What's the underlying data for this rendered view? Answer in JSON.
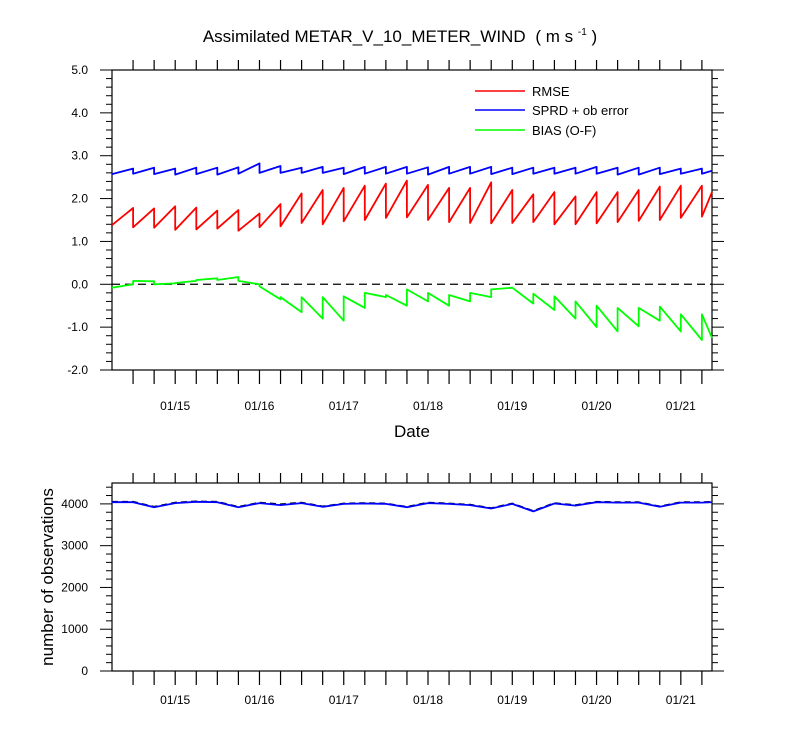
{
  "chart_data": [
    {
      "type": "line",
      "title": "Assimilated METAR_V_10_METER_WIND",
      "title_unit_base": "( m s",
      "title_unit_exp": "-1",
      "title_unit_close": " )",
      "xlabel": "Date",
      "ylabel": "",
      "ylim": [
        -2.0,
        5.0
      ],
      "y_ticks": [
        "5.0",
        "4.0",
        "3.0",
        "2.0",
        "1.0",
        "0.0",
        "-1.0",
        "-2.0"
      ],
      "x_ticks": [
        "01/15",
        "01/16",
        "01/17",
        "01/18",
        "01/19",
        "01/20",
        "01/21"
      ],
      "xlim_days": [
        14.0,
        21.12
      ],
      "legend_placement": "top-right",
      "zero_line": "dashed",
      "series": [
        {
          "name": "RMSE",
          "color": "#ff0000",
          "x": [
            14.0,
            14.25,
            14.25,
            14.5,
            14.5,
            14.75,
            14.75,
            15.0,
            15.0,
            15.25,
            15.25,
            15.5,
            15.5,
            15.75,
            15.75,
            16.0,
            16.0,
            16.25,
            16.25,
            16.5,
            16.5,
            16.75,
            16.75,
            17.0,
            17.0,
            17.25,
            17.25,
            17.5,
            17.5,
            17.75,
            17.75,
            18.0,
            18.0,
            18.25,
            18.25,
            18.5,
            18.5,
            18.75,
            18.75,
            19.0,
            19.0,
            19.25,
            19.25,
            19.5,
            19.5,
            19.75,
            19.75,
            20.0,
            20.0,
            20.25,
            20.25,
            20.5,
            20.5,
            20.75,
            20.75,
            21.0,
            21.0,
            21.12
          ],
          "y": [
            1.38,
            1.78,
            1.33,
            1.77,
            1.32,
            1.82,
            1.27,
            1.79,
            1.28,
            1.72,
            1.3,
            1.73,
            1.25,
            1.65,
            1.33,
            1.87,
            1.35,
            2.12,
            1.43,
            2.2,
            1.4,
            2.25,
            1.47,
            2.3,
            1.5,
            2.35,
            1.55,
            2.42,
            1.56,
            2.32,
            1.5,
            2.25,
            1.45,
            2.25,
            1.43,
            2.38,
            1.42,
            2.2,
            1.43,
            2.1,
            1.45,
            2.15,
            1.4,
            2.05,
            1.4,
            2.15,
            1.42,
            2.15,
            1.45,
            2.2,
            1.48,
            2.28,
            1.5,
            2.3,
            1.55,
            2.3,
            1.58,
            2.15
          ]
        },
        {
          "name": "SPRD + ob error",
          "color": "#0000ff",
          "x": [
            14.0,
            14.25,
            14.25,
            14.5,
            14.5,
            14.75,
            14.75,
            15.0,
            15.0,
            15.25,
            15.25,
            15.5,
            15.5,
            15.75,
            15.75,
            16.0,
            16.0,
            16.25,
            16.25,
            16.5,
            16.5,
            16.75,
            16.75,
            17.0,
            17.0,
            17.25,
            17.25,
            17.5,
            17.5,
            17.75,
            17.75,
            18.0,
            18.0,
            18.25,
            18.25,
            18.5,
            18.5,
            18.75,
            18.75,
            19.0,
            19.0,
            19.25,
            19.25,
            19.5,
            19.5,
            19.75,
            19.75,
            20.0,
            20.0,
            20.25,
            20.25,
            20.5,
            20.5,
            20.75,
            20.75,
            21.0,
            21.0,
            21.12
          ],
          "y": [
            2.57,
            2.7,
            2.58,
            2.72,
            2.57,
            2.7,
            2.56,
            2.72,
            2.57,
            2.72,
            2.56,
            2.73,
            2.58,
            2.82,
            2.6,
            2.76,
            2.6,
            2.72,
            2.6,
            2.74,
            2.6,
            2.72,
            2.57,
            2.74,
            2.58,
            2.74,
            2.58,
            2.74,
            2.58,
            2.73,
            2.56,
            2.74,
            2.58,
            2.74,
            2.58,
            2.74,
            2.57,
            2.72,
            2.57,
            2.72,
            2.58,
            2.72,
            2.58,
            2.72,
            2.58,
            2.74,
            2.58,
            2.72,
            2.56,
            2.72,
            2.56,
            2.72,
            2.57,
            2.7,
            2.58,
            2.7,
            2.58,
            2.65
          ]
        },
        {
          "name": "BIAS (O-F)",
          "color": "#00ff00",
          "x": [
            14.0,
            14.25,
            14.25,
            14.5,
            14.5,
            14.75,
            14.75,
            15.0,
            15.0,
            15.25,
            15.25,
            15.5,
            15.5,
            15.75,
            15.75,
            16.0,
            16.0,
            16.25,
            16.25,
            16.5,
            16.5,
            16.75,
            16.75,
            17.0,
            17.0,
            17.25,
            17.25,
            17.5,
            17.5,
            17.75,
            17.75,
            18.0,
            18.0,
            18.25,
            18.25,
            18.5,
            18.5,
            18.75,
            18.75,
            19.0,
            19.0,
            19.25,
            19.25,
            19.5,
            19.5,
            19.75,
            19.75,
            20.0,
            20.0,
            20.25,
            20.25,
            20.5,
            20.5,
            20.75,
            20.75,
            21.0,
            21.0,
            21.12
          ],
          "y": [
            -0.08,
            0.0,
            0.08,
            0.07,
            0.0,
            0.02,
            0.03,
            0.08,
            0.1,
            0.14,
            0.1,
            0.17,
            0.08,
            0.0,
            -0.05,
            -0.35,
            -0.3,
            -0.65,
            -0.3,
            -0.8,
            -0.3,
            -0.85,
            -0.28,
            -0.55,
            -0.2,
            -0.3,
            -0.25,
            -0.5,
            -0.12,
            -0.4,
            -0.2,
            -0.5,
            -0.25,
            -0.4,
            -0.2,
            -0.3,
            -0.12,
            -0.08,
            -0.08,
            -0.45,
            -0.22,
            -0.6,
            -0.28,
            -0.8,
            -0.4,
            -1.0,
            -0.5,
            -1.1,
            -0.55,
            -0.98,
            -0.55,
            -0.85,
            -0.52,
            -1.1,
            -0.7,
            -1.3,
            -0.7,
            -1.25
          ]
        }
      ]
    },
    {
      "type": "line",
      "title": "",
      "xlabel": "",
      "ylabel": "number of observations",
      "ylim": [
        0,
        4500
      ],
      "y_ticks": [
        "4000",
        "3000",
        "2000",
        "1000",
        "0"
      ],
      "x_ticks": [
        "01/15",
        "01/16",
        "01/17",
        "01/18",
        "01/19",
        "01/20",
        "01/21"
      ],
      "xlim_days": [
        14.0,
        21.12
      ],
      "series": [
        {
          "name": "",
          "color": "#000000",
          "dash": "dashed",
          "x": [
            14.0,
            14.25,
            14.5,
            14.75,
            15.0,
            15.25,
            15.5,
            15.75,
            16.0,
            16.25,
            16.5,
            16.75,
            17.0,
            17.25,
            17.5,
            17.75,
            18.0,
            18.25,
            18.5,
            18.75,
            19.0,
            19.25,
            19.5,
            19.75,
            20.0,
            20.25,
            20.5,
            20.75,
            21.0,
            21.12
          ],
          "y": [
            4050,
            4050,
            3930,
            4030,
            4060,
            4050,
            3930,
            4030,
            3990,
            4030,
            3940,
            4010,
            4020,
            4010,
            3930,
            4030,
            4010,
            3980,
            3900,
            4010,
            3830,
            4020,
            3970,
            4050,
            4040,
            4040,
            3940,
            4040,
            4040,
            4050
          ]
        },
        {
          "name": "",
          "color": "#0000ff",
          "x": [
            14.0,
            14.25,
            14.5,
            14.75,
            15.0,
            15.25,
            15.5,
            15.75,
            16.0,
            16.25,
            16.5,
            16.75,
            17.0,
            17.25,
            17.5,
            17.75,
            18.0,
            18.25,
            18.5,
            18.75,
            19.0,
            19.25,
            19.5,
            19.75,
            20.0,
            20.25,
            20.5,
            20.75,
            21.0,
            21.12
          ],
          "y": [
            4040,
            4040,
            3920,
            4020,
            4050,
            4040,
            3920,
            4020,
            3970,
            4020,
            3930,
            4000,
            4010,
            4000,
            3920,
            4020,
            4000,
            3970,
            3890,
            4000,
            3820,
            4010,
            3960,
            4040,
            4030,
            4030,
            3930,
            4030,
            4030,
            4040
          ]
        }
      ]
    }
  ]
}
